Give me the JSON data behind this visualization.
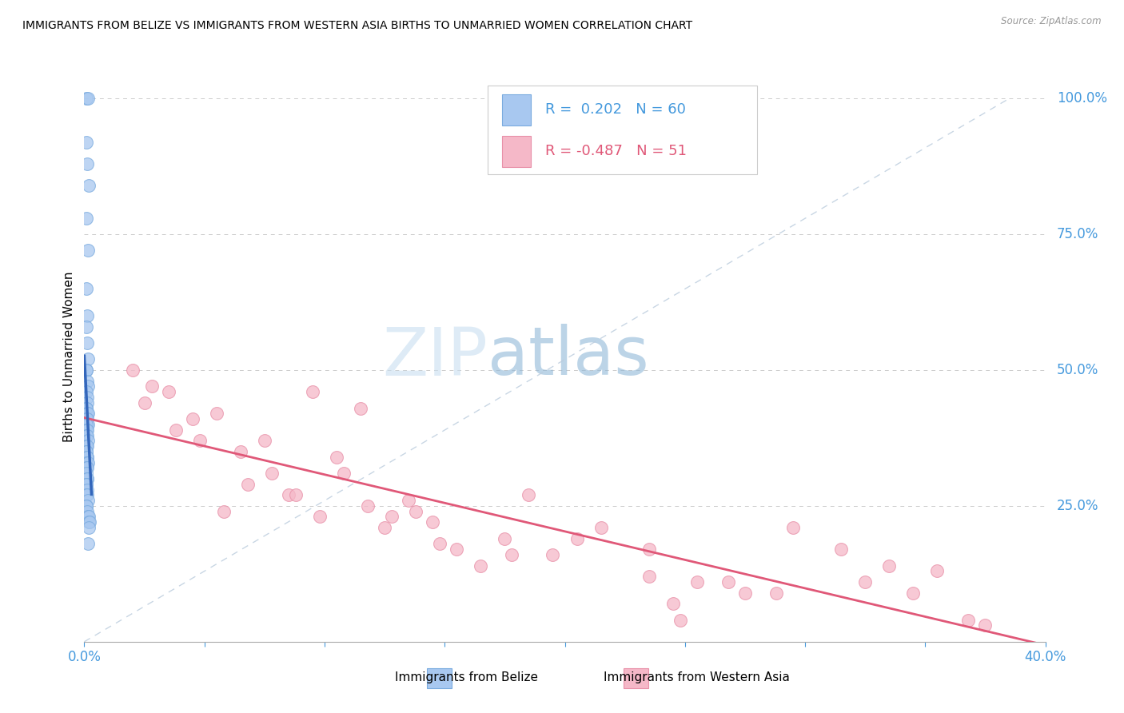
{
  "title": "IMMIGRANTS FROM BELIZE VS IMMIGRANTS FROM WESTERN ASIA BIRTHS TO UNMARRIED WOMEN CORRELATION CHART",
  "source": "Source: ZipAtlas.com",
  "ylabel": "Births to Unmarried Women",
  "belize_color": "#a8c8f0",
  "belize_edge_color": "#7aabdf",
  "western_color": "#f5b8c8",
  "western_edge_color": "#e890a8",
  "belize_line_color": "#3366bb",
  "western_line_color": "#e05878",
  "right_axis_color": "#4499dd",
  "belize_scatter_x": [
    0.0008,
    0.0015,
    0.0008,
    0.0012,
    0.0018,
    0.001,
    0.0014,
    0.0009,
    0.0011,
    0.0007,
    0.0013,
    0.0016,
    0.001,
    0.0008,
    0.0012,
    0.0015,
    0.0009,
    0.0011,
    0.0013,
    0.001,
    0.0008,
    0.0012,
    0.0016,
    0.0009,
    0.0011,
    0.0014,
    0.001,
    0.0007,
    0.0013,
    0.0009,
    0.0011,
    0.0015,
    0.0008,
    0.0012,
    0.001,
    0.0009,
    0.0013,
    0.0011,
    0.0008,
    0.0014,
    0.001,
    0.0012,
    0.0009,
    0.0011,
    0.0013,
    0.0008,
    0.001,
    0.0012,
    0.0009,
    0.0011,
    0.0014,
    0.001,
    0.0008,
    0.0012,
    0.0016,
    0.002,
    0.0018,
    0.0022,
    0.0017,
    0.0015
  ],
  "belize_scatter_y": [
    1.0,
    1.0,
    0.92,
    0.88,
    0.84,
    0.78,
    0.72,
    0.65,
    0.6,
    0.58,
    0.55,
    0.52,
    0.5,
    0.5,
    0.48,
    0.47,
    0.46,
    0.45,
    0.44,
    0.43,
    0.43,
    0.42,
    0.42,
    0.41,
    0.41,
    0.4,
    0.4,
    0.39,
    0.39,
    0.38,
    0.38,
    0.37,
    0.36,
    0.36,
    0.35,
    0.35,
    0.34,
    0.34,
    0.33,
    0.33,
    0.32,
    0.32,
    0.31,
    0.3,
    0.3,
    0.29,
    0.29,
    0.28,
    0.27,
    0.27,
    0.26,
    0.25,
    0.25,
    0.24,
    0.23,
    0.23,
    0.22,
    0.22,
    0.21,
    0.18
  ],
  "western_scatter_x": [
    0.02,
    0.035,
    0.025,
    0.055,
    0.045,
    0.038,
    0.075,
    0.095,
    0.065,
    0.028,
    0.048,
    0.085,
    0.105,
    0.115,
    0.058,
    0.078,
    0.135,
    0.098,
    0.125,
    0.068,
    0.145,
    0.088,
    0.175,
    0.195,
    0.118,
    0.155,
    0.215,
    0.108,
    0.165,
    0.138,
    0.235,
    0.185,
    0.255,
    0.128,
    0.275,
    0.205,
    0.295,
    0.148,
    0.315,
    0.178,
    0.335,
    0.245,
    0.248,
    0.355,
    0.268,
    0.375,
    0.288,
    0.235,
    0.345,
    0.368,
    0.325
  ],
  "western_scatter_y": [
    0.5,
    0.46,
    0.44,
    0.42,
    0.41,
    0.39,
    0.37,
    0.46,
    0.35,
    0.47,
    0.37,
    0.27,
    0.34,
    0.43,
    0.24,
    0.31,
    0.26,
    0.23,
    0.21,
    0.29,
    0.22,
    0.27,
    0.19,
    0.16,
    0.25,
    0.17,
    0.21,
    0.31,
    0.14,
    0.24,
    0.12,
    0.27,
    0.11,
    0.23,
    0.09,
    0.19,
    0.21,
    0.18,
    0.17,
    0.16,
    0.14,
    0.07,
    0.04,
    0.13,
    0.11,
    0.03,
    0.09,
    0.17,
    0.09,
    0.04,
    0.11
  ],
  "xmin": 0.0,
  "xmax": 0.4,
  "ymin": 0.0,
  "ymax": 1.05,
  "right_y_ticks": [
    1.0,
    0.75,
    0.5,
    0.25
  ],
  "right_y_labels": [
    "100.0%",
    "75.0%",
    "50.0%",
    "25.0%"
  ],
  "x_ticks": [
    0.0,
    0.05,
    0.1,
    0.15,
    0.2,
    0.25,
    0.3,
    0.35,
    0.4
  ]
}
